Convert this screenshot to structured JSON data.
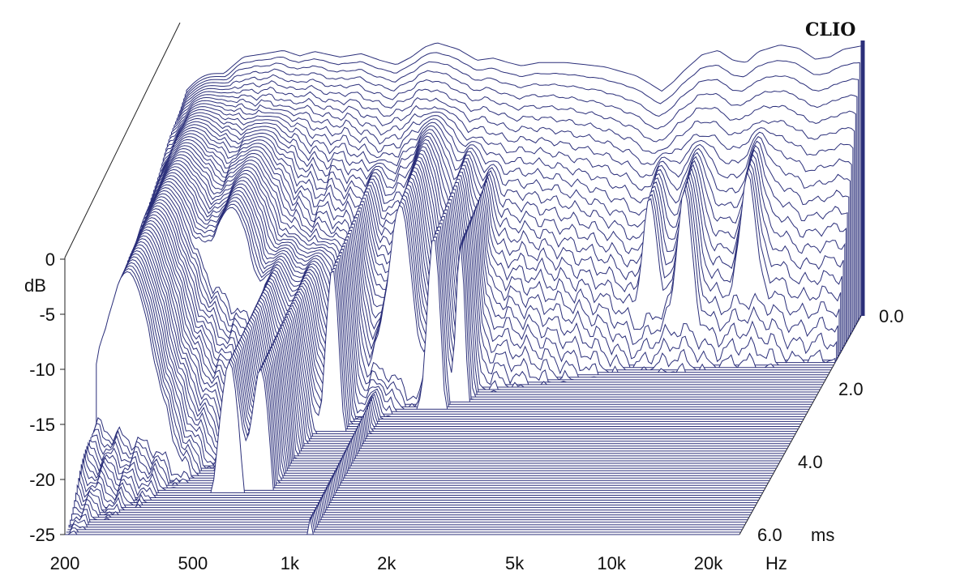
{
  "brand": "CLIO",
  "colors": {
    "line": "#2b2f7a",
    "fill": "#ffffff",
    "ink": "#111111"
  },
  "chart_data": {
    "type": "waterfall",
    "title": "",
    "xlabel": "Hz",
    "ylabel": "dB",
    "zlabel": "ms",
    "x_scale": "log",
    "xlim": [
      200,
      25000
    ],
    "ylim": [
      -25,
      0
    ],
    "zlim": [
      0,
      6
    ],
    "x_ticks": [
      {
        "value": 200,
        "label": "200"
      },
      {
        "value": 500,
        "label": "500"
      },
      {
        "value": 1000,
        "label": "1k"
      },
      {
        "value": 2000,
        "label": "2k"
      },
      {
        "value": 5000,
        "label": "5k"
      },
      {
        "value": 10000,
        "label": "10k"
      },
      {
        "value": 20000,
        "label": "20k"
      }
    ],
    "y_ticks": [
      {
        "value": 0,
        "label": "0"
      },
      {
        "value": -5,
        "label": "-5"
      },
      {
        "value": -10,
        "label": "-10"
      },
      {
        "value": -15,
        "label": "-15"
      },
      {
        "value": -20,
        "label": "-20"
      },
      {
        "value": -25,
        "label": "-25"
      }
    ],
    "z_ticks": [
      {
        "value": 0,
        "label": "0.0"
      },
      {
        "value": 2,
        "label": "2.0"
      },
      {
        "value": 4,
        "label": "4.0"
      },
      {
        "value": 6,
        "label": "6.0"
      }
    ],
    "initial_response_db": [
      [
        200,
        -5.5
      ],
      [
        250,
        -3.5
      ],
      [
        300,
        -1.5
      ],
      [
        350,
        -1.2
      ],
      [
        400,
        -0.9
      ],
      [
        450,
        -1.4
      ],
      [
        500,
        -1.0
      ],
      [
        600,
        -1.5
      ],
      [
        700,
        -1.2
      ],
      [
        800,
        -1.8
      ],
      [
        900,
        -2.2
      ],
      [
        1000,
        -1.5
      ],
      [
        1100,
        -0.6
      ],
      [
        1200,
        -0.2
      ],
      [
        1400,
        -0.8
      ],
      [
        1600,
        -1.8
      ],
      [
        1800,
        -1.6
      ],
      [
        2000,
        -2.0
      ],
      [
        2200,
        -2.3
      ],
      [
        2500,
        -2.0
      ],
      [
        3000,
        -2.0
      ],
      [
        3500,
        -2.2
      ],
      [
        4000,
        -2.4
      ],
      [
        5000,
        -3.2
      ],
      [
        5500,
        -3.9
      ],
      [
        6000,
        -4.6
      ],
      [
        6500,
        -3.8
      ],
      [
        7000,
        -2.8
      ],
      [
        8000,
        -1.3
      ],
      [
        9000,
        -0.9
      ],
      [
        10000,
        -1.8
      ],
      [
        11000,
        -2.0
      ],
      [
        12000,
        -1.0
      ],
      [
        14000,
        -0.4
      ],
      [
        16000,
        -0.7
      ],
      [
        18000,
        -1.7
      ],
      [
        20000,
        -1.5
      ],
      [
        22000,
        -0.8
      ],
      [
        25000,
        -0.5
      ]
    ],
    "decay_features": [
      {
        "f": 250,
        "db": -3.0,
        "t": 4.5,
        "width": 0.1,
        "note": "bass hump"
      },
      {
        "f": 400,
        "db": -3.5,
        "t": 2.6,
        "width": 0.08,
        "note": "lower-mid hump"
      },
      {
        "f": 550,
        "db": -11.0,
        "t": 4.9,
        "width": 0.05,
        "note": "resonance ridge"
      },
      {
        "f": 680,
        "db": -12.0,
        "t": 4.8,
        "width": 0.05,
        "note": "resonance ridge"
      },
      {
        "f": 900,
        "db": -7.5,
        "t": 3.2,
        "width": 0.03,
        "note": "ridge"
      },
      {
        "f": 1150,
        "db": -22.5,
        "t": 6.0,
        "width": 0.02,
        "note": "long tail"
      },
      {
        "f": 1300,
        "db": -4.0,
        "t": 2.4,
        "width": 0.05,
        "note": "peak"
      },
      {
        "f": 1700,
        "db": -6.5,
        "t": 2.6,
        "width": 0.03,
        "note": "ridge"
      },
      {
        "f": 2000,
        "db": -8.0,
        "t": 2.4,
        "width": 0.02,
        "note": "ridge"
      },
      {
        "f": 6500,
        "db": -8.0,
        "t": 1.2,
        "width": 0.03,
        "note": "cluster"
      },
      {
        "f": 8500,
        "db": -6.5,
        "t": 1.3,
        "width": 0.03,
        "note": "cluster"
      },
      {
        "f": 13000,
        "db": -5.5,
        "t": 1.1,
        "width": 0.03,
        "note": "cluster"
      }
    ]
  }
}
